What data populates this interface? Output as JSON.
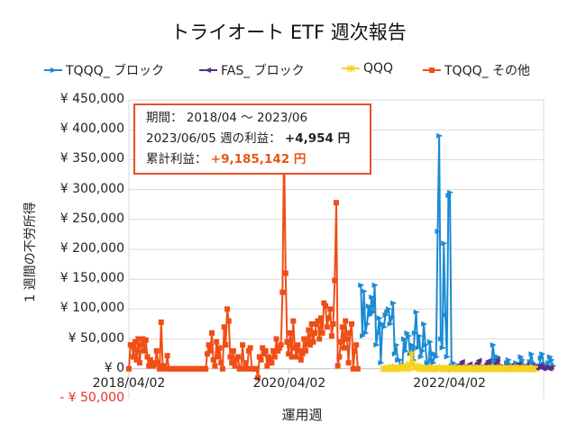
{
  "chart_data": {
    "type": "line",
    "title": "トライオート ETF 週次報告",
    "xlabel": "運用週",
    "ylabel": "1 週間の不労所得",
    "x_interval": "weekly",
    "xlim": [
      "2018/04/02",
      "2023/06/05"
    ],
    "ylim": [
      -50000,
      450000
    ],
    "grid": true,
    "legend": "top",
    "x_ticks": [
      "2018/04/02",
      "2020/04/02",
      "2022/04/02"
    ],
    "y_ticks": [
      {
        "value": 450000,
        "label": "¥ 450,000"
      },
      {
        "value": 400000,
        "label": "¥ 400,000"
      },
      {
        "value": 350000,
        "label": "¥ 350,000"
      },
      {
        "value": 300000,
        "label": "¥ 300,000"
      },
      {
        "value": 250000,
        "label": "¥ 250,000"
      },
      {
        "value": 200000,
        "label": "¥ 200,000"
      },
      {
        "value": 150000,
        "label": "¥ 150,000"
      },
      {
        "value": 100000,
        "label": "¥ 100,000"
      },
      {
        "value": 50000,
        "label": "¥ 50,000"
      },
      {
        "value": 0,
        "label": "¥ 0"
      },
      {
        "value": -50000,
        "label": "- ¥ 50,000",
        "color": "#e8302a"
      }
    ],
    "series": [
      {
        "name": "TQQQ_ ブロック",
        "color": "#1b8ad3",
        "marker": "triangle-right",
        "first_date": "2021/02/22",
        "values": [
          140000,
          55000,
          130000,
          60000,
          75000,
          105000,
          90000,
          120000,
          95000,
          140000,
          40000,
          60000,
          85000,
          10000,
          75000,
          70000,
          90000,
          95000,
          100000,
          75000,
          85000,
          110000,
          25000,
          40000,
          15000,
          15000,
          0,
          5000,
          50000,
          30000,
          60000,
          55000,
          25000,
          40000,
          15000,
          60000,
          95000,
          35000,
          55000,
          20000,
          30000,
          75000,
          40000,
          10000,
          5000,
          45000,
          15000,
          10000,
          25000,
          20000,
          230000,
          390000,
          50000,
          35000,
          210000,
          90000,
          20000,
          290000,
          295000,
          5000,
          10000,
          0,
          5000,
          3000,
          5000,
          0,
          2000,
          5000,
          0,
          3000,
          0,
          5000,
          2000,
          0,
          3000,
          0,
          5000,
          2000,
          0,
          5000,
          3000,
          0,
          2000,
          0,
          5000,
          10000,
          40000,
          15000,
          5000,
          20000,
          3000,
          0,
          5000,
          2000,
          0,
          10000,
          15000,
          5000,
          0,
          3000,
          5000,
          10000,
          8000,
          2000,
          20000,
          15000,
          5000,
          0,
          3000,
          5000,
          12000,
          25000,
          10000,
          5000,
          3000,
          0,
          5000,
          18000,
          25000,
          8000,
          3000,
          5000,
          10000,
          20000,
          15000,
          5000
        ]
      },
      {
        "name": "FAS_ ブロック",
        "color": "#5a2d82",
        "marker": "triangle-left",
        "first_date": "2022/05/02",
        "values": [
          0,
          2000,
          5000,
          8000,
          12000,
          3000,
          0,
          2000,
          4000,
          8000,
          2000,
          0,
          3000,
          6000,
          10000,
          14000,
          2000,
          0,
          2000,
          5000,
          9000,
          13000,
          2000,
          0,
          3000,
          6000,
          10000,
          15000,
          3000,
          0,
          2000,
          4000,
          3000,
          0,
          2000,
          3000,
          6000,
          2000,
          0,
          3000,
          5000,
          8000,
          2000,
          0,
          2000,
          4000,
          6000,
          1000,
          0,
          2000,
          5000,
          3000,
          0,
          2000,
          4000,
          6000,
          2000,
          0,
          2000,
          3000,
          1000,
          0,
          2000
        ]
      },
      {
        "name": "QQQ",
        "color": "#f7d21f",
        "marker": "star",
        "first_date": "2021/06/07",
        "values": [
          0,
          1000,
          0,
          2000,
          0,
          1000,
          3000,
          0,
          2000,
          1000,
          0,
          2000,
          0,
          5000,
          3000,
          2000,
          0,
          8000,
          25000,
          10000,
          3000,
          2000,
          5000,
          1000,
          0,
          2000,
          0,
          1000,
          0,
          2000,
          0,
          1000,
          0,
          0,
          1000,
          0,
          2000,
          0,
          1000,
          0,
          0,
          1000,
          0,
          0,
          2000,
          0,
          1000,
          0,
          0,
          1000,
          0,
          0,
          1000,
          0,
          2000,
          0,
          0,
          1000,
          0,
          0,
          1000,
          0,
          0,
          2000,
          0,
          1000,
          0,
          0,
          1000,
          0,
          0,
          1000,
          0,
          0,
          2000,
          0,
          1000,
          0,
          0,
          1000,
          0,
          0,
          1000,
          0,
          0,
          2000,
          0,
          1000,
          0,
          0,
          1000,
          0,
          0,
          1000,
          0,
          0,
          1000,
          0,
          0
        ]
      },
      {
        "name": "TQQQ_ その他",
        "color": "#f04e16",
        "marker": "square",
        "first_date": "2018/04/02",
        "values": [
          0,
          40000,
          38000,
          20000,
          45000,
          15000,
          50000,
          10000,
          40000,
          50000,
          30000,
          48000,
          20000,
          5000,
          15000,
          10000,
          5000,
          8000,
          30000,
          10000,
          0,
          78000,
          5000,
          0,
          0,
          22000,
          0,
          0,
          0,
          0,
          0,
          0,
          0,
          0,
          0,
          0,
          0,
          0,
          0,
          0,
          0,
          0,
          0,
          0,
          0,
          0,
          0,
          0,
          0,
          0,
          0,
          25000,
          40000,
          30000,
          60000,
          15000,
          5000,
          45000,
          20000,
          35000,
          10000,
          0,
          70000,
          40000,
          100000,
          80000,
          20000,
          10000,
          30000,
          5000,
          15000,
          20000,
          0,
          0,
          40000,
          0,
          10000,
          0,
          30000,
          35000,
          0,
          0,
          0,
          0,
          -15000,
          20000,
          15000,
          35000,
          25000,
          30000,
          5000,
          20000,
          15000,
          10000,
          30000,
          20000,
          50000,
          30000,
          35000,
          40000,
          128000,
          380000,
          160000,
          45000,
          25000,
          60000,
          20000,
          80000,
          35000,
          20000,
          40000,
          30000,
          15000,
          25000,
          50000,
          30000,
          45000,
          65000,
          40000,
          75000,
          45000,
          60000,
          75000,
          80000,
          50000,
          85000,
          60000,
          110000,
          105000,
          70000,
          85000,
          100000,
          55000,
          75000,
          148000,
          278000,
          5000,
          20000,
          45000,
          70000,
          35000,
          80000,
          50000,
          10000,
          60000,
          75000,
          0,
          30000,
          40000,
          0
        ]
      }
    ]
  },
  "annotation": {
    "period_label": "期間：",
    "period_value": "2018/04 ～ 2023/06",
    "week_label": "2023/06/05 週の利益：",
    "week_value": "+4,954 円",
    "total_label": "累計利益：",
    "total_value": "+9,185,142 円",
    "border_color": "#e8502a"
  }
}
